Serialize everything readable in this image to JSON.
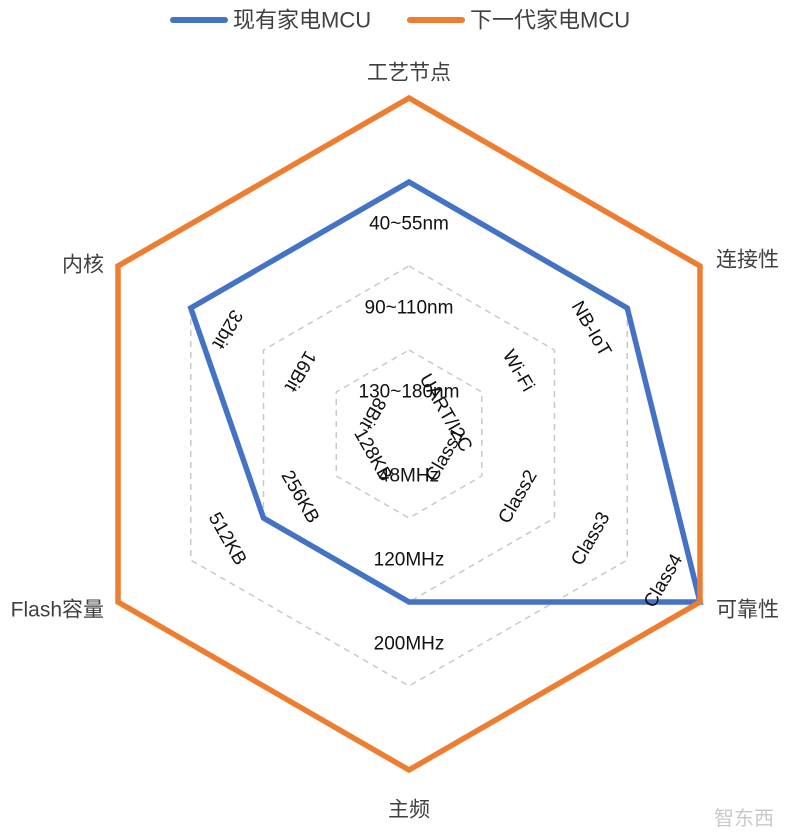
{
  "chart_data": {
    "type": "radar",
    "levels": 4,
    "axes": [
      {
        "name": "工艺节点",
        "ticks": [
          "130~180nm",
          "90~110nm",
          "40~55nm"
        ]
      },
      {
        "name": "连接性",
        "ticks": [
          "UART/I2C",
          "Wi-Fi",
          "NB-IoT"
        ]
      },
      {
        "name": "可靠性",
        "ticks": [
          "Class1",
          "Class2",
          "Class3",
          "Class4"
        ]
      },
      {
        "name": "主频",
        "ticks": [
          "48MHz",
          "120MHz",
          "200MHz"
        ]
      },
      {
        "name": "Flash容量",
        "ticks": [
          "128KB",
          "256KB",
          "512KB"
        ]
      },
      {
        "name": "内核",
        "ticks": [
          "8Bit",
          "16Bit",
          "32bit"
        ]
      }
    ],
    "series": [
      {
        "name": "现有家电MCU",
        "color": "#4472C4",
        "values": [
          3,
          3,
          4,
          2,
          2,
          3
        ]
      },
      {
        "name": "下一代家电MCU",
        "color": "#ED7D31",
        "values": [
          4,
          4,
          4,
          4,
          4,
          4
        ]
      }
    ],
    "grid_color": "#c8c8c8",
    "legend_position": "top"
  },
  "watermark": {
    "text": "智东西",
    "color": "#c9c9c9"
  }
}
